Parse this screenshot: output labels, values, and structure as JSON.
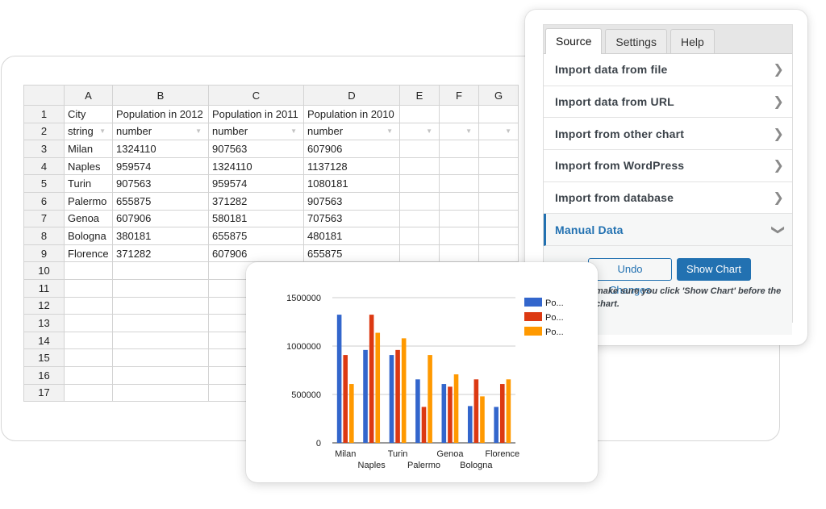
{
  "spreadsheet": {
    "column_headers": [
      "",
      "A",
      "B",
      "C",
      "D",
      "E",
      "F",
      "G"
    ],
    "rows": [
      [
        "1",
        "City",
        "Population in 2012",
        "Population in 2011",
        "Population in 2010",
        "",
        "",
        ""
      ],
      [
        "2",
        "string",
        "number",
        "number",
        "number",
        "",
        "",
        ""
      ],
      [
        "3",
        "Milan",
        "1324110",
        "907563",
        "607906",
        "",
        "",
        ""
      ],
      [
        "4",
        "Naples",
        "959574",
        "1324110",
        "1137128",
        "",
        "",
        ""
      ],
      [
        "5",
        "Turin",
        "907563",
        "959574",
        "1080181",
        "",
        "",
        ""
      ],
      [
        "6",
        "Palermo",
        "655875",
        "371282",
        "907563",
        "",
        "",
        ""
      ],
      [
        "7",
        "Genoa",
        "607906",
        "580181",
        "707563",
        "",
        "",
        ""
      ],
      [
        "8",
        "Bologna",
        "380181",
        "655875",
        "480181",
        "",
        "",
        ""
      ],
      [
        "9",
        "Florence",
        "371282",
        "607906",
        "655875",
        "",
        "",
        ""
      ],
      [
        "10",
        "",
        "",
        "",
        "",
        "",
        "",
        ""
      ],
      [
        "11",
        "",
        "",
        "",
        "",
        "",
        "",
        ""
      ],
      [
        "12",
        "",
        "",
        "",
        "",
        "",
        "",
        ""
      ],
      [
        "13",
        "",
        "",
        "",
        "",
        "",
        "",
        ""
      ],
      [
        "14",
        "",
        "",
        "",
        "",
        "",
        "",
        ""
      ],
      [
        "15",
        "",
        "",
        "",
        "",
        "",
        "",
        ""
      ],
      [
        "16",
        "",
        "",
        "",
        "",
        "",
        "",
        ""
      ],
      [
        "17",
        "",
        "",
        "",
        "",
        "",
        "",
        ""
      ]
    ]
  },
  "panel": {
    "tabs": [
      {
        "label": "Source",
        "active": true
      },
      {
        "label": "Settings",
        "active": false
      },
      {
        "label": "Help",
        "active": false
      }
    ],
    "menu": [
      {
        "label": "Import data from file",
        "icon": "chevron-right-icon"
      },
      {
        "label": "Import data from URL",
        "icon": "chevron-right-icon"
      },
      {
        "label": "Import from other chart",
        "icon": "chevron-right-icon"
      },
      {
        "label": "Import from WordPress",
        "icon": "chevron-right-icon"
      },
      {
        "label": "Import from database",
        "icon": "chevron-right-icon"
      },
      {
        "label": "Manual Data",
        "icon": "chevron-down-icon",
        "active": true
      }
    ],
    "undo_label": "Undo Changes",
    "show_chart_label": "Show Chart",
    "help_text": "make sure you click 'Show Chart' before the chart."
  },
  "colors": {
    "accent": "#2271b1",
    "series": [
      "#3366cc",
      "#dc3912",
      "#ff9900"
    ]
  },
  "chart_data": {
    "type": "bar",
    "categories": [
      "Milan",
      "Naples",
      "Turin",
      "Palermo",
      "Genoa",
      "Bologna",
      "Florence"
    ],
    "series": [
      {
        "name": "Po...",
        "values": [
          1324110,
          959574,
          907563,
          655875,
          607906,
          380181,
          371282
        ]
      },
      {
        "name": "Po...",
        "values": [
          907563,
          1324110,
          959574,
          371282,
          580181,
          655875,
          607906
        ]
      },
      {
        "name": "Po...",
        "values": [
          607906,
          1137128,
          1080181,
          907563,
          707563,
          480181,
          655875
        ]
      }
    ],
    "y_ticks": [
      "0",
      "500000",
      "1000000",
      "1500000"
    ],
    "ylim": [
      0,
      1500000
    ],
    "grid": true,
    "legend_position": "right"
  }
}
